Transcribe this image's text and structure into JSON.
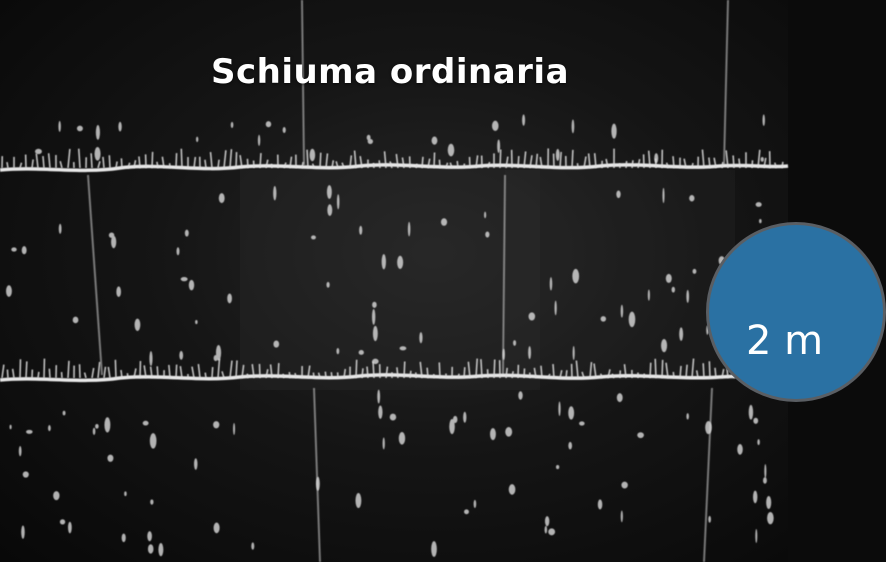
{
  "photo": {
    "subject": "foam-on-tiled-wall-photo",
    "caption": "Schiuma ordinaria"
  },
  "badge": {
    "text": "2 m",
    "color": "#2a71a3",
    "border_color": "#5a5e63"
  },
  "colors": {
    "background": "#0b0b0b",
    "foam": "#e8e8e8",
    "text": "#ffffff"
  }
}
